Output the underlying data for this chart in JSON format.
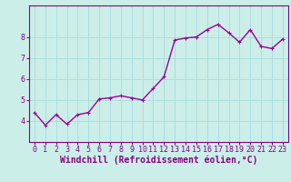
{
  "x": [
    0,
    1,
    2,
    3,
    4,
    5,
    6,
    7,
    8,
    9,
    10,
    11,
    12,
    13,
    14,
    15,
    16,
    17,
    18,
    19,
    20,
    21,
    22,
    23
  ],
  "y": [
    4.4,
    3.8,
    4.3,
    3.85,
    4.3,
    4.4,
    5.05,
    5.1,
    5.2,
    5.1,
    5.0,
    5.55,
    6.1,
    7.85,
    7.95,
    8.0,
    8.35,
    8.6,
    8.2,
    7.75,
    8.35,
    7.55,
    7.45,
    7.9
  ],
  "line_color": "#990099",
  "marker": "+",
  "marker_color": "#990099",
  "bg_color": "#cceee8",
  "grid_color": "#aadddd",
  "xlabel": "Windchill (Refroidissement éolien,°C)",
  "ylim": [
    3.0,
    9.5
  ],
  "xlim": [
    -0.5,
    23.5
  ],
  "yticks": [
    4,
    5,
    6,
    7,
    8
  ],
  "xticks": [
    0,
    1,
    2,
    3,
    4,
    5,
    6,
    7,
    8,
    9,
    10,
    11,
    12,
    13,
    14,
    15,
    16,
    17,
    18,
    19,
    20,
    21,
    22,
    23
  ],
  "tick_fontsize": 6.0,
  "xlabel_fontsize": 7.0,
  "line_width": 1.0,
  "marker_size": 3.5,
  "label_color": "#880088"
}
